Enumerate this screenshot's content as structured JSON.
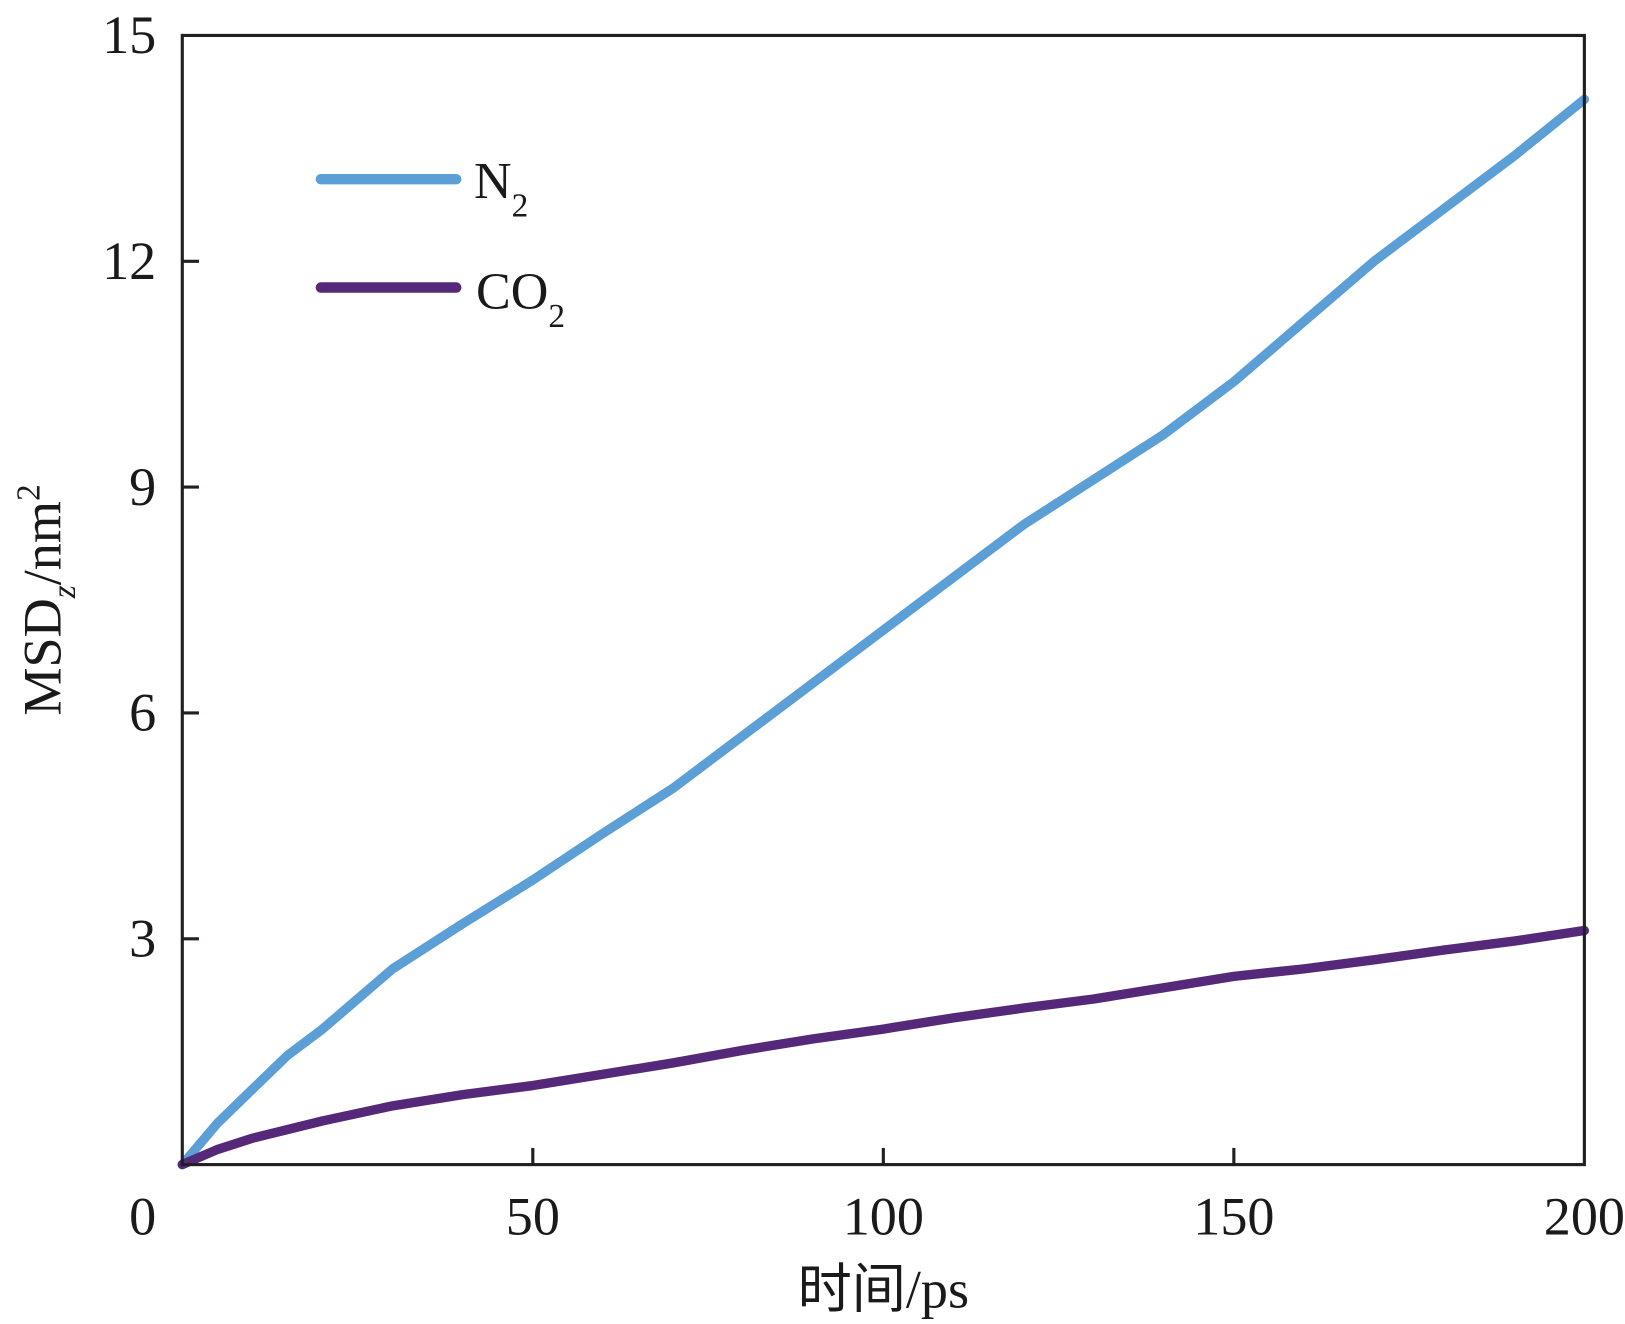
{
  "chart_data": {
    "type": "line",
    "title": "",
    "xlabel": "时间/ps",
    "ylabel": {
      "main": "MSD",
      "sub": "z",
      "unit": "/nm",
      "sup": "2"
    },
    "xlim": [
      0,
      200
    ],
    "ylim": [
      0,
      15
    ],
    "xticks": [
      0,
      50,
      100,
      150,
      200
    ],
    "yticks": [
      3,
      6,
      9,
      12,
      15
    ],
    "grid": false,
    "legend_position": "top-left",
    "series": [
      {
        "name": "N2",
        "label_main": "N",
        "label_sub": "2",
        "color": "#5b9fd6",
        "x": [
          0,
          5,
          10,
          15,
          20,
          25,
          30,
          40,
          50,
          60,
          70,
          80,
          90,
          100,
          110,
          120,
          130,
          140,
          150,
          160,
          170,
          180,
          190,
          200
        ],
        "y": [
          0,
          0.55,
          1.0,
          1.45,
          1.8,
          2.2,
          2.6,
          3.2,
          3.78,
          4.4,
          5.0,
          5.7,
          6.4,
          7.1,
          7.8,
          8.5,
          9.1,
          9.7,
          10.4,
          11.2,
          12.0,
          12.7,
          13.4,
          14.15
        ]
      },
      {
        "name": "CO2",
        "label_main": "CO",
        "label_sub": "2",
        "color": "#55287a",
        "x": [
          0,
          5,
          10,
          20,
          30,
          40,
          50,
          60,
          70,
          80,
          90,
          100,
          110,
          120,
          130,
          140,
          150,
          160,
          170,
          180,
          190,
          200
        ],
        "y": [
          0,
          0.2,
          0.35,
          0.58,
          0.78,
          0.93,
          1.05,
          1.2,
          1.35,
          1.52,
          1.67,
          1.8,
          1.95,
          2.08,
          2.2,
          2.35,
          2.5,
          2.6,
          2.72,
          2.85,
          2.97,
          3.11
        ]
      }
    ]
  }
}
